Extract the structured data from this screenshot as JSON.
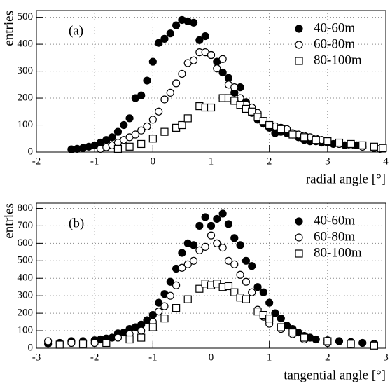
{
  "chart_data": [
    {
      "type": "scatter",
      "panel_label": "(a)",
      "x_label": "radial angle [°]",
      "y_label": "entries",
      "xlim": [
        -2,
        4
      ],
      "ylim": [
        0,
        525
      ],
      "xticks": [
        -2,
        -1,
        0,
        1,
        2,
        3,
        4
      ],
      "yticks": [
        0,
        100,
        200,
        300,
        400,
        500
      ],
      "grid": true,
      "legend": "upper right",
      "series": [
        {
          "name": "40-60m",
          "color": "#000000",
          "marker": "circle",
          "filled": true,
          "x": [
            -1.4,
            -1.3,
            -1.2,
            -1.1,
            -1.0,
            -0.9,
            -0.8,
            -0.7,
            -0.6,
            -0.5,
            -0.4,
            -0.3,
            -0.2,
            -0.1,
            0.0,
            0.1,
            0.2,
            0.3,
            0.4,
            0.5,
            0.6,
            0.7,
            0.8,
            0.9,
            1.0,
            1.1,
            1.2,
            1.3,
            1.4,
            1.5,
            1.6,
            1.7,
            1.8,
            1.9,
            2.0,
            2.1,
            2.2,
            2.3,
            2.4,
            2.5,
            2.6,
            2.7,
            2.8,
            2.9,
            3.0,
            3.1,
            3.2,
            3.3,
            3.4,
            3.5,
            3.6
          ],
          "values": [
            10,
            12,
            15,
            20,
            25,
            35,
            45,
            55,
            75,
            100,
            125,
            200,
            210,
            265,
            335,
            405,
            420,
            440,
            470,
            490,
            485,
            480,
            415,
            430,
            360,
            335,
            295,
            275,
            220,
            240,
            185,
            145,
            120,
            105,
            90,
            70,
            75,
            70,
            65,
            55,
            45,
            40,
            40,
            35,
            35,
            30,
            30,
            25,
            25,
            25,
            20
          ]
        },
        {
          "name": "60-80m",
          "color": "#000000",
          "marker": "circle",
          "filled": false,
          "x": [
            -0.9,
            -0.8,
            -0.7,
            -0.6,
            -0.5,
            -0.4,
            -0.3,
            -0.2,
            -0.1,
            0.0,
            0.1,
            0.2,
            0.3,
            0.4,
            0.5,
            0.6,
            0.7,
            0.8,
            0.9,
            1.0,
            1.1,
            1.2,
            1.3,
            1.4,
            1.5,
            1.6,
            1.7,
            1.8,
            1.9,
            2.0,
            2.1,
            2.2,
            2.3,
            2.4,
            2.5,
            2.6,
            2.7,
            2.8,
            2.9,
            3.0,
            3.2,
            3.4,
            3.6,
            3.8,
            3.9
          ],
          "values": [
            12,
            18,
            25,
            35,
            45,
            55,
            65,
            80,
            95,
            120,
            150,
            195,
            220,
            255,
            290,
            330,
            340,
            370,
            370,
            360,
            310,
            345,
            250,
            240,
            200,
            175,
            165,
            145,
            115,
            100,
            95,
            90,
            85,
            70,
            65,
            60,
            55,
            50,
            45,
            40,
            30,
            25,
            20,
            15,
            12
          ]
        },
        {
          "name": "80-100m",
          "color": "#000000",
          "marker": "square",
          "filled": false,
          "x": [
            -0.6,
            -0.4,
            -0.2,
            0.0,
            0.2,
            0.4,
            0.5,
            0.6,
            0.8,
            0.9,
            1.0,
            1.2,
            1.3,
            1.4,
            1.5,
            1.6,
            1.7,
            1.8,
            1.9,
            2.0,
            2.2,
            2.4,
            2.6,
            2.8,
            3.0,
            3.2,
            3.4,
            3.6,
            3.8,
            3.95
          ],
          "values": [
            12,
            20,
            30,
            50,
            75,
            90,
            100,
            125,
            170,
            165,
            165,
            200,
            200,
            190,
            175,
            160,
            150,
            130,
            115,
            100,
            85,
            65,
            55,
            45,
            40,
            35,
            30,
            25,
            20,
            15
          ]
        }
      ]
    },
    {
      "type": "scatter",
      "panel_label": "(b)",
      "x_label": "tangential angle [°]",
      "y_label": "entries",
      "xlim": [
        -3,
        3
      ],
      "ylim": [
        0,
        830
      ],
      "xticks": [
        -3,
        -2,
        -1,
        0,
        1,
        2,
        3
      ],
      "yticks": [
        0,
        100,
        200,
        300,
        400,
        500,
        600,
        700,
        800
      ],
      "grid": true,
      "legend": "upper right",
      "series": [
        {
          "name": "40-60m",
          "color": "#000000",
          "marker": "circle",
          "filled": true,
          "x": [
            -2.8,
            -2.6,
            -2.4,
            -2.2,
            -2.0,
            -1.9,
            -1.8,
            -1.7,
            -1.6,
            -1.5,
            -1.4,
            -1.3,
            -1.2,
            -1.1,
            -1.0,
            -0.9,
            -0.8,
            -0.7,
            -0.6,
            -0.5,
            -0.4,
            -0.3,
            -0.2,
            -0.1,
            0.0,
            0.1,
            0.2,
            0.3,
            0.4,
            0.5,
            0.6,
            0.7,
            0.8,
            0.9,
            1.0,
            1.1,
            1.2,
            1.3,
            1.4,
            1.5,
            1.6,
            1.7,
            1.8,
            2.0,
            2.2,
            2.4,
            2.6,
            2.8
          ],
          "values": [
            25,
            30,
            40,
            40,
            45,
            50,
            55,
            60,
            85,
            90,
            110,
            120,
            135,
            160,
            190,
            260,
            310,
            380,
            455,
            545,
            600,
            590,
            700,
            750,
            700,
            740,
            770,
            710,
            630,
            590,
            500,
            470,
            350,
            320,
            260,
            200,
            170,
            130,
            110,
            90,
            70,
            60,
            50,
            45,
            40,
            35,
            30,
            25
          ]
        },
        {
          "name": "60-80m",
          "color": "#000000",
          "marker": "circle",
          "filled": false,
          "x": [
            -2.8,
            -2.4,
            -2.0,
            -1.6,
            -1.4,
            -1.2,
            -1.0,
            -0.9,
            -0.8,
            -0.7,
            -0.6,
            -0.5,
            -0.4,
            -0.3,
            -0.2,
            -0.1,
            0.0,
            0.1,
            0.2,
            0.3,
            0.4,
            0.5,
            0.6,
            0.7,
            0.8,
            0.9,
            1.0,
            1.2,
            1.4,
            1.6,
            2.0,
            2.4,
            2.8
          ],
          "values": [
            40,
            30,
            30,
            60,
            80,
            100,
            150,
            210,
            240,
            300,
            360,
            460,
            480,
            500,
            560,
            580,
            645,
            600,
            575,
            500,
            480,
            420,
            380,
            320,
            220,
            180,
            140,
            110,
            80,
            50,
            30,
            25,
            20
          ]
        },
        {
          "name": "80-100m",
          "color": "#000000",
          "marker": "square",
          "filled": false,
          "x": [
            -2.6,
            -2.2,
            -1.8,
            -1.4,
            -1.2,
            -1.0,
            -0.8,
            -0.6,
            -0.4,
            -0.2,
            -0.1,
            0.0,
            0.1,
            0.2,
            0.3,
            0.4,
            0.5,
            0.6,
            0.8,
            0.9,
            1.0,
            1.2,
            1.4,
            1.6,
            2.0,
            2.4,
            2.8
          ],
          "values": [
            20,
            25,
            30,
            50,
            60,
            120,
            170,
            230,
            280,
            340,
            370,
            360,
            370,
            350,
            355,
            320,
            290,
            280,
            210,
            190,
            170,
            120,
            90,
            60,
            40,
            25,
            15
          ]
        }
      ]
    }
  ]
}
